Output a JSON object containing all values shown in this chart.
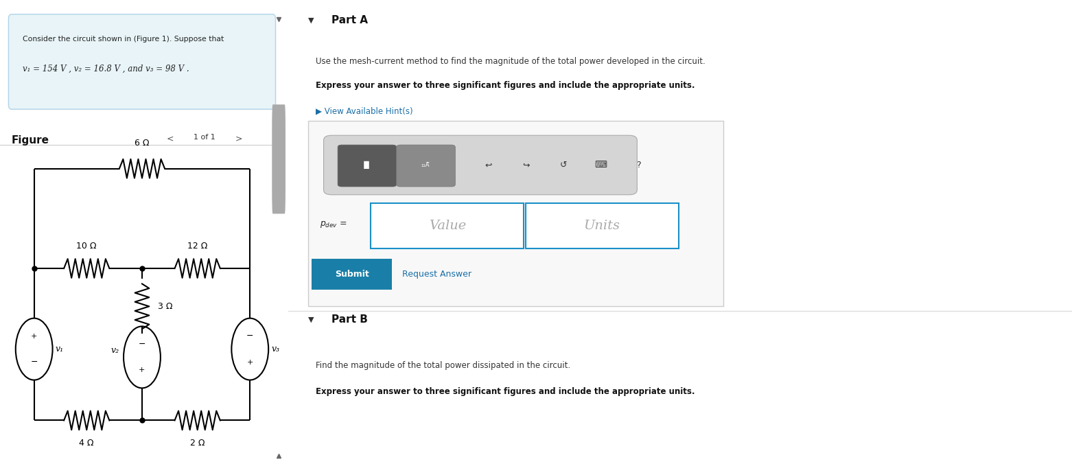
{
  "bg_color": "#ffffff",
  "info_box_bg": "#e8f4f8",
  "info_box_border": "#b0d4e8",
  "info_text_line1": "Consider the circuit shown in (Figure 1). Suppose that",
  "info_text_line2": "v₁ = 154 V , v₂ = 16.8 V , and v₃ = 98 V .",
  "figure_label": "Figure",
  "nav_text": "1 of 1",
  "right_panel_bg": "#f0f0f0",
  "part_a_title": "Part A",
  "part_a_desc1": "Use the mesh-current method to find the magnitude of the total power developed in the circuit.",
  "part_a_desc2": "Express your answer to three significant figures and include the appropriate units.",
  "hint_text": "▶ View Available Hint(s)",
  "hint_color": "#1a6fa8",
  "value_placeholder": "Value",
  "units_placeholder": "Units",
  "submit_text": "Submit",
  "submit_bg": "#1a7fa8",
  "submit_text_color": "#ffffff",
  "request_answer_text": "Request Answer",
  "request_answer_color": "#1a6fa8",
  "part_b_title": "Part B",
  "part_b_desc1": "Find the magnitude of the total power dissipated in the circuit.",
  "part_b_desc2": "Express your answer to three significant figures and include the appropriate units.",
  "circuit": {
    "R6_label": "6 Ω",
    "R10_label": "10 Ω",
    "R12_label": "12 Ω",
    "R3_label": "3 Ω",
    "R4_label": "4 Ω",
    "R2_label": "2 Ω",
    "v1_label": "v₁",
    "v2_label": "v₂",
    "v3_label": "v₃"
  }
}
